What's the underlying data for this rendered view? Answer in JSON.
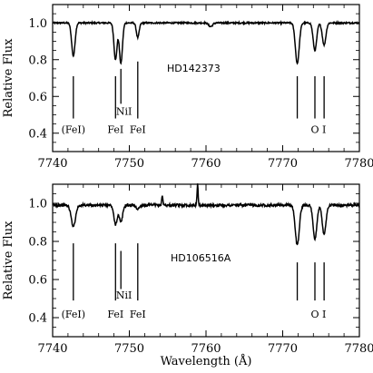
{
  "chart_data": [
    {
      "type": "line",
      "ylabel": "Relative Flux",
      "xlim": [
        7740,
        7780
      ],
      "ylim": [
        0.3,
        1.1
      ],
      "x_ticks": [
        7740,
        7750,
        7760,
        7770,
        7780
      ],
      "y_ticks": [
        0.4,
        0.6,
        0.8,
        1.0
      ],
      "x_tick_labels": [
        "7740",
        "7750",
        "7760",
        "7770",
        "7780"
      ],
      "y_tick_labels": [
        "0.4",
        "0.6",
        "0.8",
        "1.0"
      ],
      "annotations": [
        {
          "text": "HD142373"
        }
      ],
      "continuum": 1.0,
      "absorption_lines": [
        {
          "center": 7742.7,
          "depth": 0.18,
          "width": 0.22
        },
        {
          "center": 7748.2,
          "depth": 0.2,
          "width": 0.2
        },
        {
          "center": 7748.9,
          "depth": 0.22,
          "width": 0.2
        },
        {
          "center": 7751.1,
          "depth": 0.08,
          "width": 0.18
        },
        {
          "center": 7760.6,
          "depth": 0.02,
          "width": 0.25
        },
        {
          "center": 7771.9,
          "depth": 0.22,
          "width": 0.25
        },
        {
          "center": 7774.2,
          "depth": 0.15,
          "width": 0.23
        },
        {
          "center": 7775.4,
          "depth": 0.12,
          "width": 0.23
        }
      ],
      "line_markers": [
        {
          "x": 7742.7,
          "y_top": 0.71,
          "y_bottom": 0.48
        },
        {
          "x": 7748.2,
          "y_top": 0.71,
          "y_bottom": 0.48
        },
        {
          "x": 7748.9,
          "y_top": 0.75,
          "y_bottom": 0.56
        },
        {
          "x": 7751.1,
          "y_top": 0.79,
          "y_bottom": 0.48
        },
        {
          "x": 7771.9,
          "y_top": 0.71,
          "y_bottom": 0.48
        },
        {
          "x": 7774.2,
          "y_top": 0.71,
          "y_bottom": 0.48
        },
        {
          "x": 7775.4,
          "y_top": 0.71,
          "y_bottom": 0.48
        }
      ],
      "line_labels": [
        {
          "text": "(FeI)",
          "x": 7742.7,
          "y": 0.42
        },
        {
          "text": "FeI",
          "x": 7748.2,
          "y": 0.42
        },
        {
          "text": "NiI",
          "x": 7749.3,
          "y": 0.52
        },
        {
          "text": "FeI",
          "x": 7751.1,
          "y": 0.42
        },
        {
          "text": "O",
          "x": 7774.2,
          "y": 0.42
        },
        {
          "text": "I",
          "x": 7775.4,
          "y": 0.42
        }
      ]
    },
    {
      "type": "line",
      "ylabel": "Relative Flux",
      "xlabel": "Wavelength (Å)",
      "xlim": [
        7740,
        7780
      ],
      "ylim": [
        0.3,
        1.1
      ],
      "x_ticks": [
        7740,
        7750,
        7760,
        7770,
        7780
      ],
      "y_ticks": [
        0.4,
        0.6,
        0.8,
        1.0
      ],
      "x_tick_labels": [
        "7740",
        "7750",
        "7760",
        "7770",
        "7780"
      ],
      "y_tick_labels": [
        "0.4",
        "0.6",
        "0.8",
        "1.0"
      ],
      "annotations": [
        {
          "text": "HD106516A"
        }
      ],
      "continuum": 0.99,
      "absorption_lines": [
        {
          "center": 7742.7,
          "depth": 0.11,
          "width": 0.28
        },
        {
          "center": 7748.2,
          "depth": 0.1,
          "width": 0.22
        },
        {
          "center": 7748.9,
          "depth": 0.09,
          "width": 0.22
        },
        {
          "center": 7751.1,
          "depth": 0.02,
          "width": 0.2
        },
        {
          "center": 7771.9,
          "depth": 0.21,
          "width": 0.26
        },
        {
          "center": 7774.2,
          "depth": 0.18,
          "width": 0.24
        },
        {
          "center": 7775.4,
          "depth": 0.15,
          "width": 0.24
        }
      ],
      "emission_features": [
        {
          "center": 7754.3,
          "height": 0.05,
          "width": 0.08
        },
        {
          "center": 7758.9,
          "height": 0.11,
          "width": 0.07
        }
      ],
      "line_markers": [
        {
          "x": 7742.7,
          "y_top": 0.79,
          "y_bottom": 0.49
        },
        {
          "x": 7748.2,
          "y_top": 0.79,
          "y_bottom": 0.49
        },
        {
          "x": 7748.9,
          "y_top": 0.75,
          "y_bottom": 0.55
        },
        {
          "x": 7751.1,
          "y_top": 0.79,
          "y_bottom": 0.49
        },
        {
          "x": 7771.9,
          "y_top": 0.69,
          "y_bottom": 0.49
        },
        {
          "x": 7774.2,
          "y_top": 0.69,
          "y_bottom": 0.49
        },
        {
          "x": 7775.4,
          "y_top": 0.69,
          "y_bottom": 0.49
        }
      ],
      "line_labels": [
        {
          "text": "(FeI)",
          "x": 7742.7,
          "y": 0.42
        },
        {
          "text": "FeI",
          "x": 7748.2,
          "y": 0.42
        },
        {
          "text": "NiI",
          "x": 7749.3,
          "y": 0.52
        },
        {
          "text": "FeI",
          "x": 7751.1,
          "y": 0.42
        },
        {
          "text": "O",
          "x": 7774.2,
          "y": 0.42
        },
        {
          "text": "I",
          "x": 7775.4,
          "y": 0.42
        }
      ]
    }
  ]
}
